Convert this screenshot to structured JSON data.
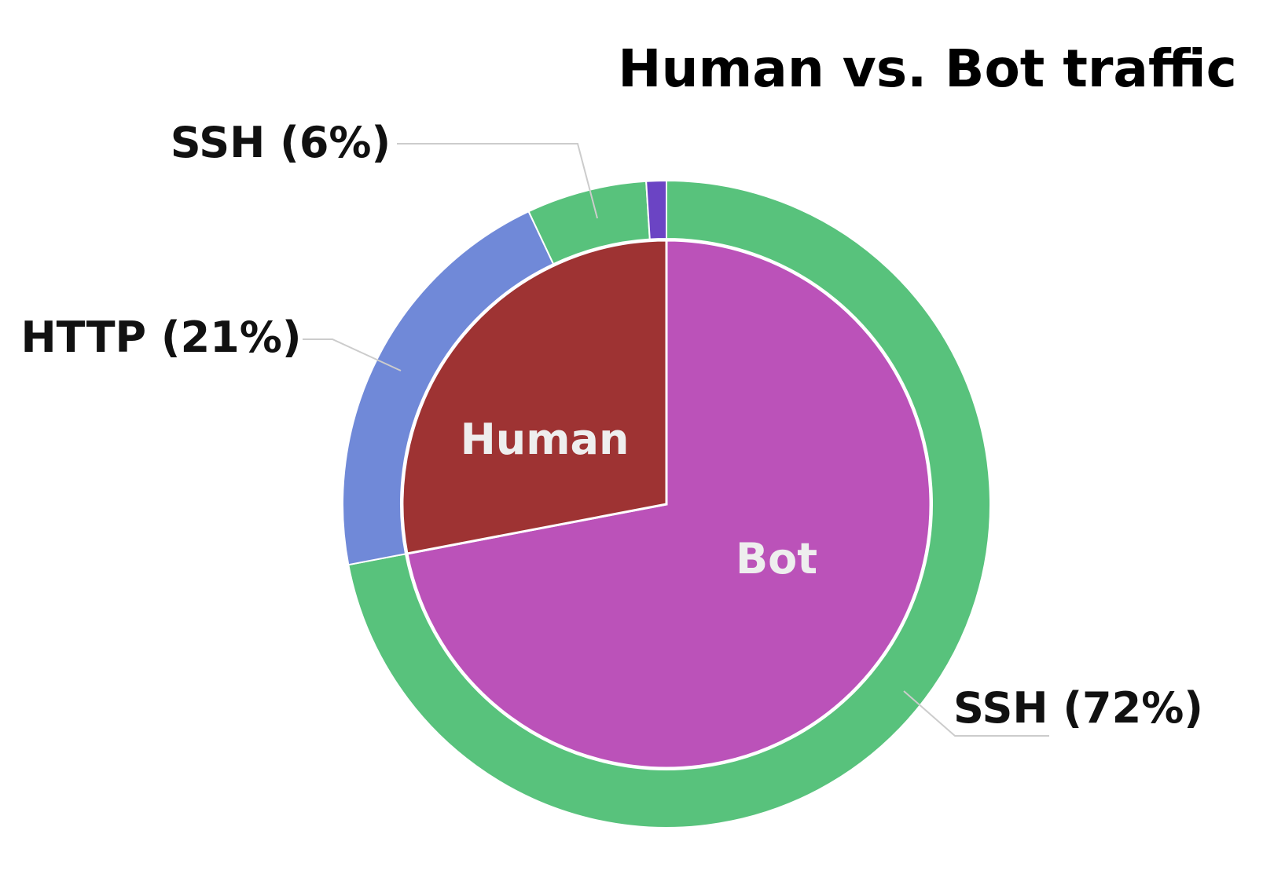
{
  "chart_data": {
    "type": "pie",
    "title": "Human vs. Bot traffic",
    "inner": [
      {
        "name": "Human",
        "value": 28,
        "color": "#9e3333",
        "label": "Human"
      },
      {
        "name": "Bot",
        "value": 72,
        "color": "#bb52b9",
        "label": "Bot"
      }
    ],
    "outer": [
      {
        "name": "SSH",
        "percent": 72,
        "value": 72,
        "color": "#58c27c",
        "label": "SSH (72%)"
      },
      {
        "name": "HTTP",
        "percent": 21,
        "value": 21,
        "color": "#7089d8",
        "label": "HTTP (21%)"
      },
      {
        "name": "SSH",
        "percent": 6,
        "value": 6,
        "color": "#58c27c",
        "label": "SSH (6%)"
      },
      {
        "name": "",
        "value": 1,
        "color": "#6b44c4",
        "label": ""
      }
    ]
  }
}
